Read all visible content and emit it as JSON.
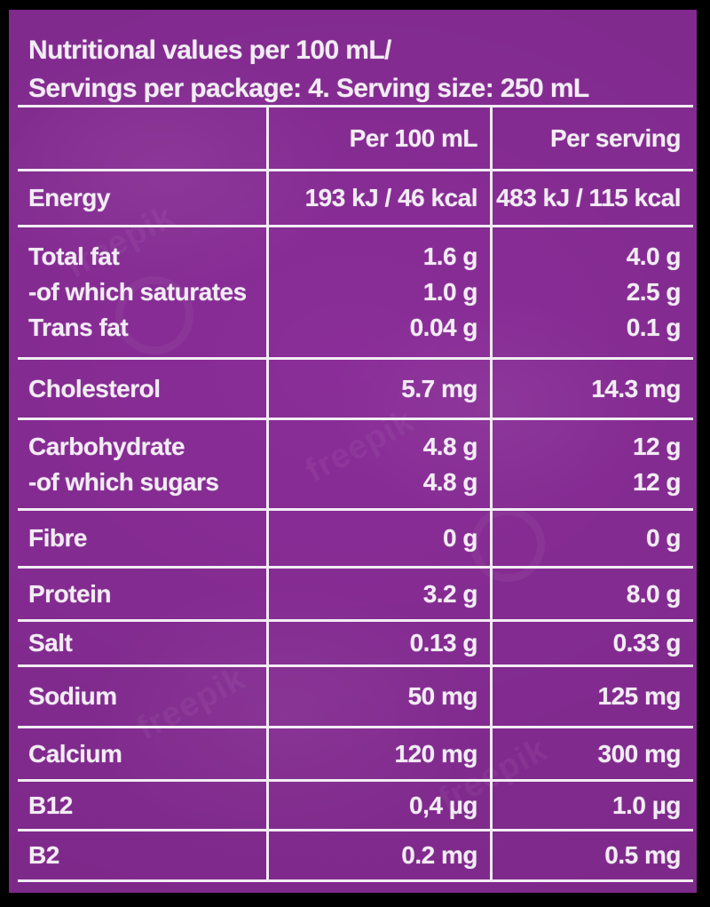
{
  "title": {
    "line1": "Nutritional values per 100 mL/",
    "line2": "Servings per package: 4. Serving size: 250 mL"
  },
  "table": {
    "columns": [
      "",
      "Per 100 mL",
      "Per serving"
    ],
    "rows": [
      {
        "cells": [
          [
            "Energy"
          ],
          [
            "193 kJ / 46 kcal"
          ],
          [
            "483 kJ / 115 kcal"
          ]
        ]
      },
      {
        "cells": [
          [
            "Total fat",
            "-of which saturates",
            "Trans fat"
          ],
          [
            "1.6 g",
            "1.0 g",
            "0.04 g"
          ],
          [
            "4.0 g",
            "2.5 g",
            "0.1 g"
          ]
        ]
      },
      {
        "cells": [
          [
            "Cholesterol"
          ],
          [
            "5.7 mg"
          ],
          [
            "14.3 mg"
          ]
        ]
      },
      {
        "cells": [
          [
            "Carbohydrate",
            "-of which sugars"
          ],
          [
            "4.8 g",
            "4.8 g"
          ],
          [
            "12 g",
            "12 g"
          ]
        ]
      },
      {
        "cells": [
          [
            "Fibre"
          ],
          [
            "0 g"
          ],
          [
            "0 g"
          ]
        ]
      },
      {
        "cells": [
          [
            "Protein"
          ],
          [
            "3.2 g"
          ],
          [
            "8.0 g"
          ]
        ]
      },
      {
        "cells": [
          [
            "Salt"
          ],
          [
            "0.13 g"
          ],
          [
            "0.33 g"
          ]
        ]
      },
      {
        "cells": [
          [
            "Sodium"
          ],
          [
            "50 mg"
          ],
          [
            "125 mg"
          ]
        ]
      },
      {
        "cells": [
          [
            "Calcium"
          ],
          [
            "120 mg"
          ],
          [
            "300 mg"
          ]
        ]
      },
      {
        "cells": [
          [
            "B12"
          ],
          [
            "0,4 µg"
          ],
          [
            "1.0 µg"
          ]
        ]
      },
      {
        "cells": [
          [
            "B2"
          ],
          [
            "0.2 mg"
          ],
          [
            "0.5 mg"
          ]
        ]
      }
    ]
  },
  "watermark": {
    "text": "freepik"
  },
  "colors": {
    "background": "#8a2d98",
    "frame": "#000000",
    "text": "#f2ecf4",
    "lines": "#f2ecf4"
  }
}
